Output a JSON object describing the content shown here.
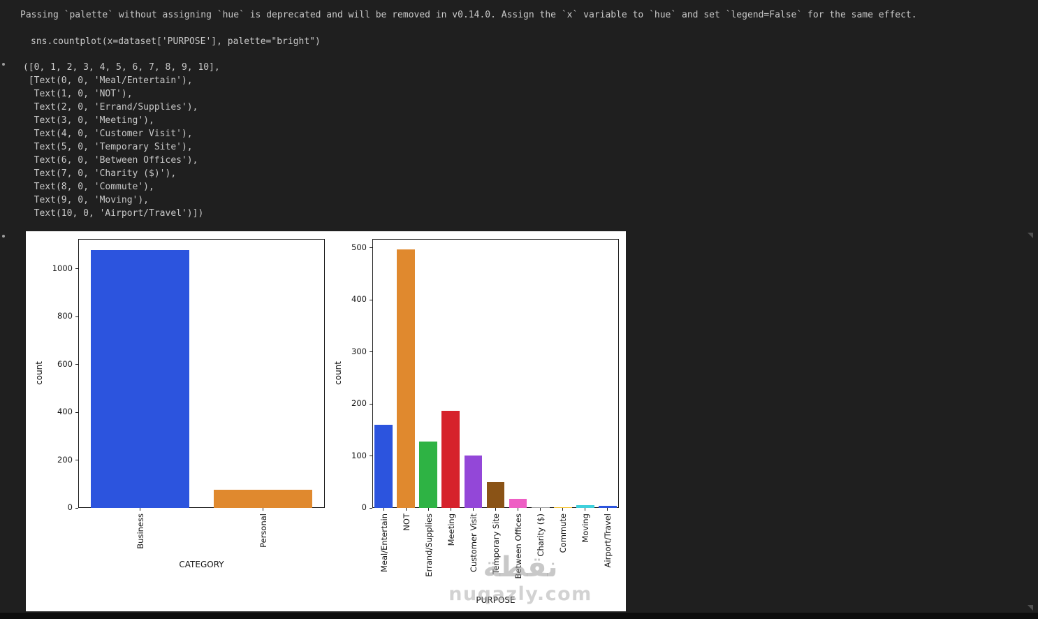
{
  "editor": {
    "warning_text": "Passing `palette` without assigning `hue` is deprecated and will be removed in v0.14.0. Assign the `x` variable to `hue` and set `legend=False` for the same effect.",
    "code_line": "sns.countplot(x=dataset['PURPOSE'], palette=\"bright\")",
    "output_text": "([0, 1, 2, 3, 4, 5, 6, 7, 8, 9, 10],\n [Text(0, 0, 'Meal/Entertain'),\n  Text(1, 0, 'NOT'),\n  Text(2, 0, 'Errand/Supplies'),\n  Text(3, 0, 'Meeting'),\n  Text(4, 0, 'Customer Visit'),\n  Text(5, 0, 'Temporary Site'),\n  Text(6, 0, 'Between Offices'),\n  Text(7, 0, 'Charity ($)'),\n  Text(8, 0, 'Commute'),\n  Text(9, 0, 'Moving'),\n  Text(10, 0, 'Airport/Travel')])"
  },
  "watermark": {
    "arabic": "نقطة",
    "domain": "nuqazly.com"
  },
  "chart_data": [
    {
      "type": "bar",
      "title": "",
      "xlabel": "CATEGORY",
      "ylabel": "count",
      "categories": [
        "Business",
        "Personal"
      ],
      "values": [
        1078,
        77
      ],
      "ylim": [
        0,
        1125
      ],
      "yticks": [
        0,
        200,
        400,
        600,
        800,
        1000
      ],
      "bar_colors": [
        "#2c54de",
        "#e0892e"
      ],
      "grid": false,
      "legend": "none"
    },
    {
      "type": "bar",
      "title": "",
      "xlabel": "PURPOSE",
      "ylabel": "count",
      "categories": [
        "Meal/Entertain",
        "NOT",
        "Errand/Supplies",
        "Meeting",
        "Customer Visit",
        "Temporary Site",
        "Between Offices",
        "Charity ($)",
        "Commute",
        "Moving",
        "Airport/Travel"
      ],
      "values": [
        160,
        497,
        128,
        187,
        101,
        50,
        18,
        1,
        2,
        5,
        4
      ],
      "ylim": [
        0,
        517
      ],
      "yticks": [
        0,
        100,
        200,
        300,
        400,
        500
      ],
      "bar_colors": [
        "#2c54de",
        "#e0892e",
        "#2eb344",
        "#d6222b",
        "#9347d8",
        "#8a5316",
        "#ee5ec4",
        "#a3a3a3",
        "#f5c436",
        "#3fd0dc",
        "#2c54de"
      ],
      "grid": false,
      "legend": "none"
    }
  ]
}
